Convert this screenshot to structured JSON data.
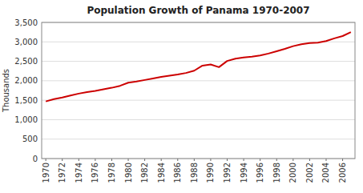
{
  "chart_data": {
    "type": "line",
    "title": "Population Growth of Panama 1970-2007",
    "ylabel": "Thousands",
    "x": [
      1970,
      1971,
      1972,
      1973,
      1974,
      1975,
      1976,
      1977,
      1978,
      1979,
      1980,
      1981,
      1982,
      1983,
      1984,
      1985,
      1986,
      1987,
      1988,
      1989,
      1990,
      1991,
      1992,
      1993,
      1994,
      1995,
      1996,
      1997,
      1998,
      1999,
      2000,
      2001,
      2002,
      2003,
      2004,
      2005,
      2006,
      2007
    ],
    "values": [
      1470,
      1530,
      1570,
      1620,
      1670,
      1710,
      1740,
      1780,
      1820,
      1870,
      1950,
      1980,
      2020,
      2060,
      2100,
      2130,
      2160,
      2200,
      2260,
      2390,
      2420,
      2350,
      2510,
      2570,
      2600,
      2620,
      2650,
      2700,
      2760,
      2820,
      2890,
      2940,
      2970,
      2980,
      3020,
      3090,
      3150,
      3250
    ],
    "color": "#cc0000",
    "xlim": [
      1969.5,
      2007.5
    ],
    "xticks": [
      1970,
      1972,
      1974,
      1976,
      1978,
      1980,
      1982,
      1984,
      1986,
      1988,
      1990,
      1992,
      1994,
      1996,
      1998,
      2000,
      2002,
      2004,
      2006
    ],
    "ylim": [
      0,
      3500
    ],
    "yticks": [
      0,
      500,
      {
        "value": 1000,
        "label": "1,000"
      },
      {
        "value": 1500,
        "label": "1,500"
      },
      {
        "value": 2000,
        "label": "2,000"
      },
      {
        "value": 2500,
        "label": "2,500"
      },
      {
        "value": 3000,
        "label": "3,000"
      },
      {
        "value": 3500,
        "label": "3,500"
      }
    ],
    "grid": true
  }
}
